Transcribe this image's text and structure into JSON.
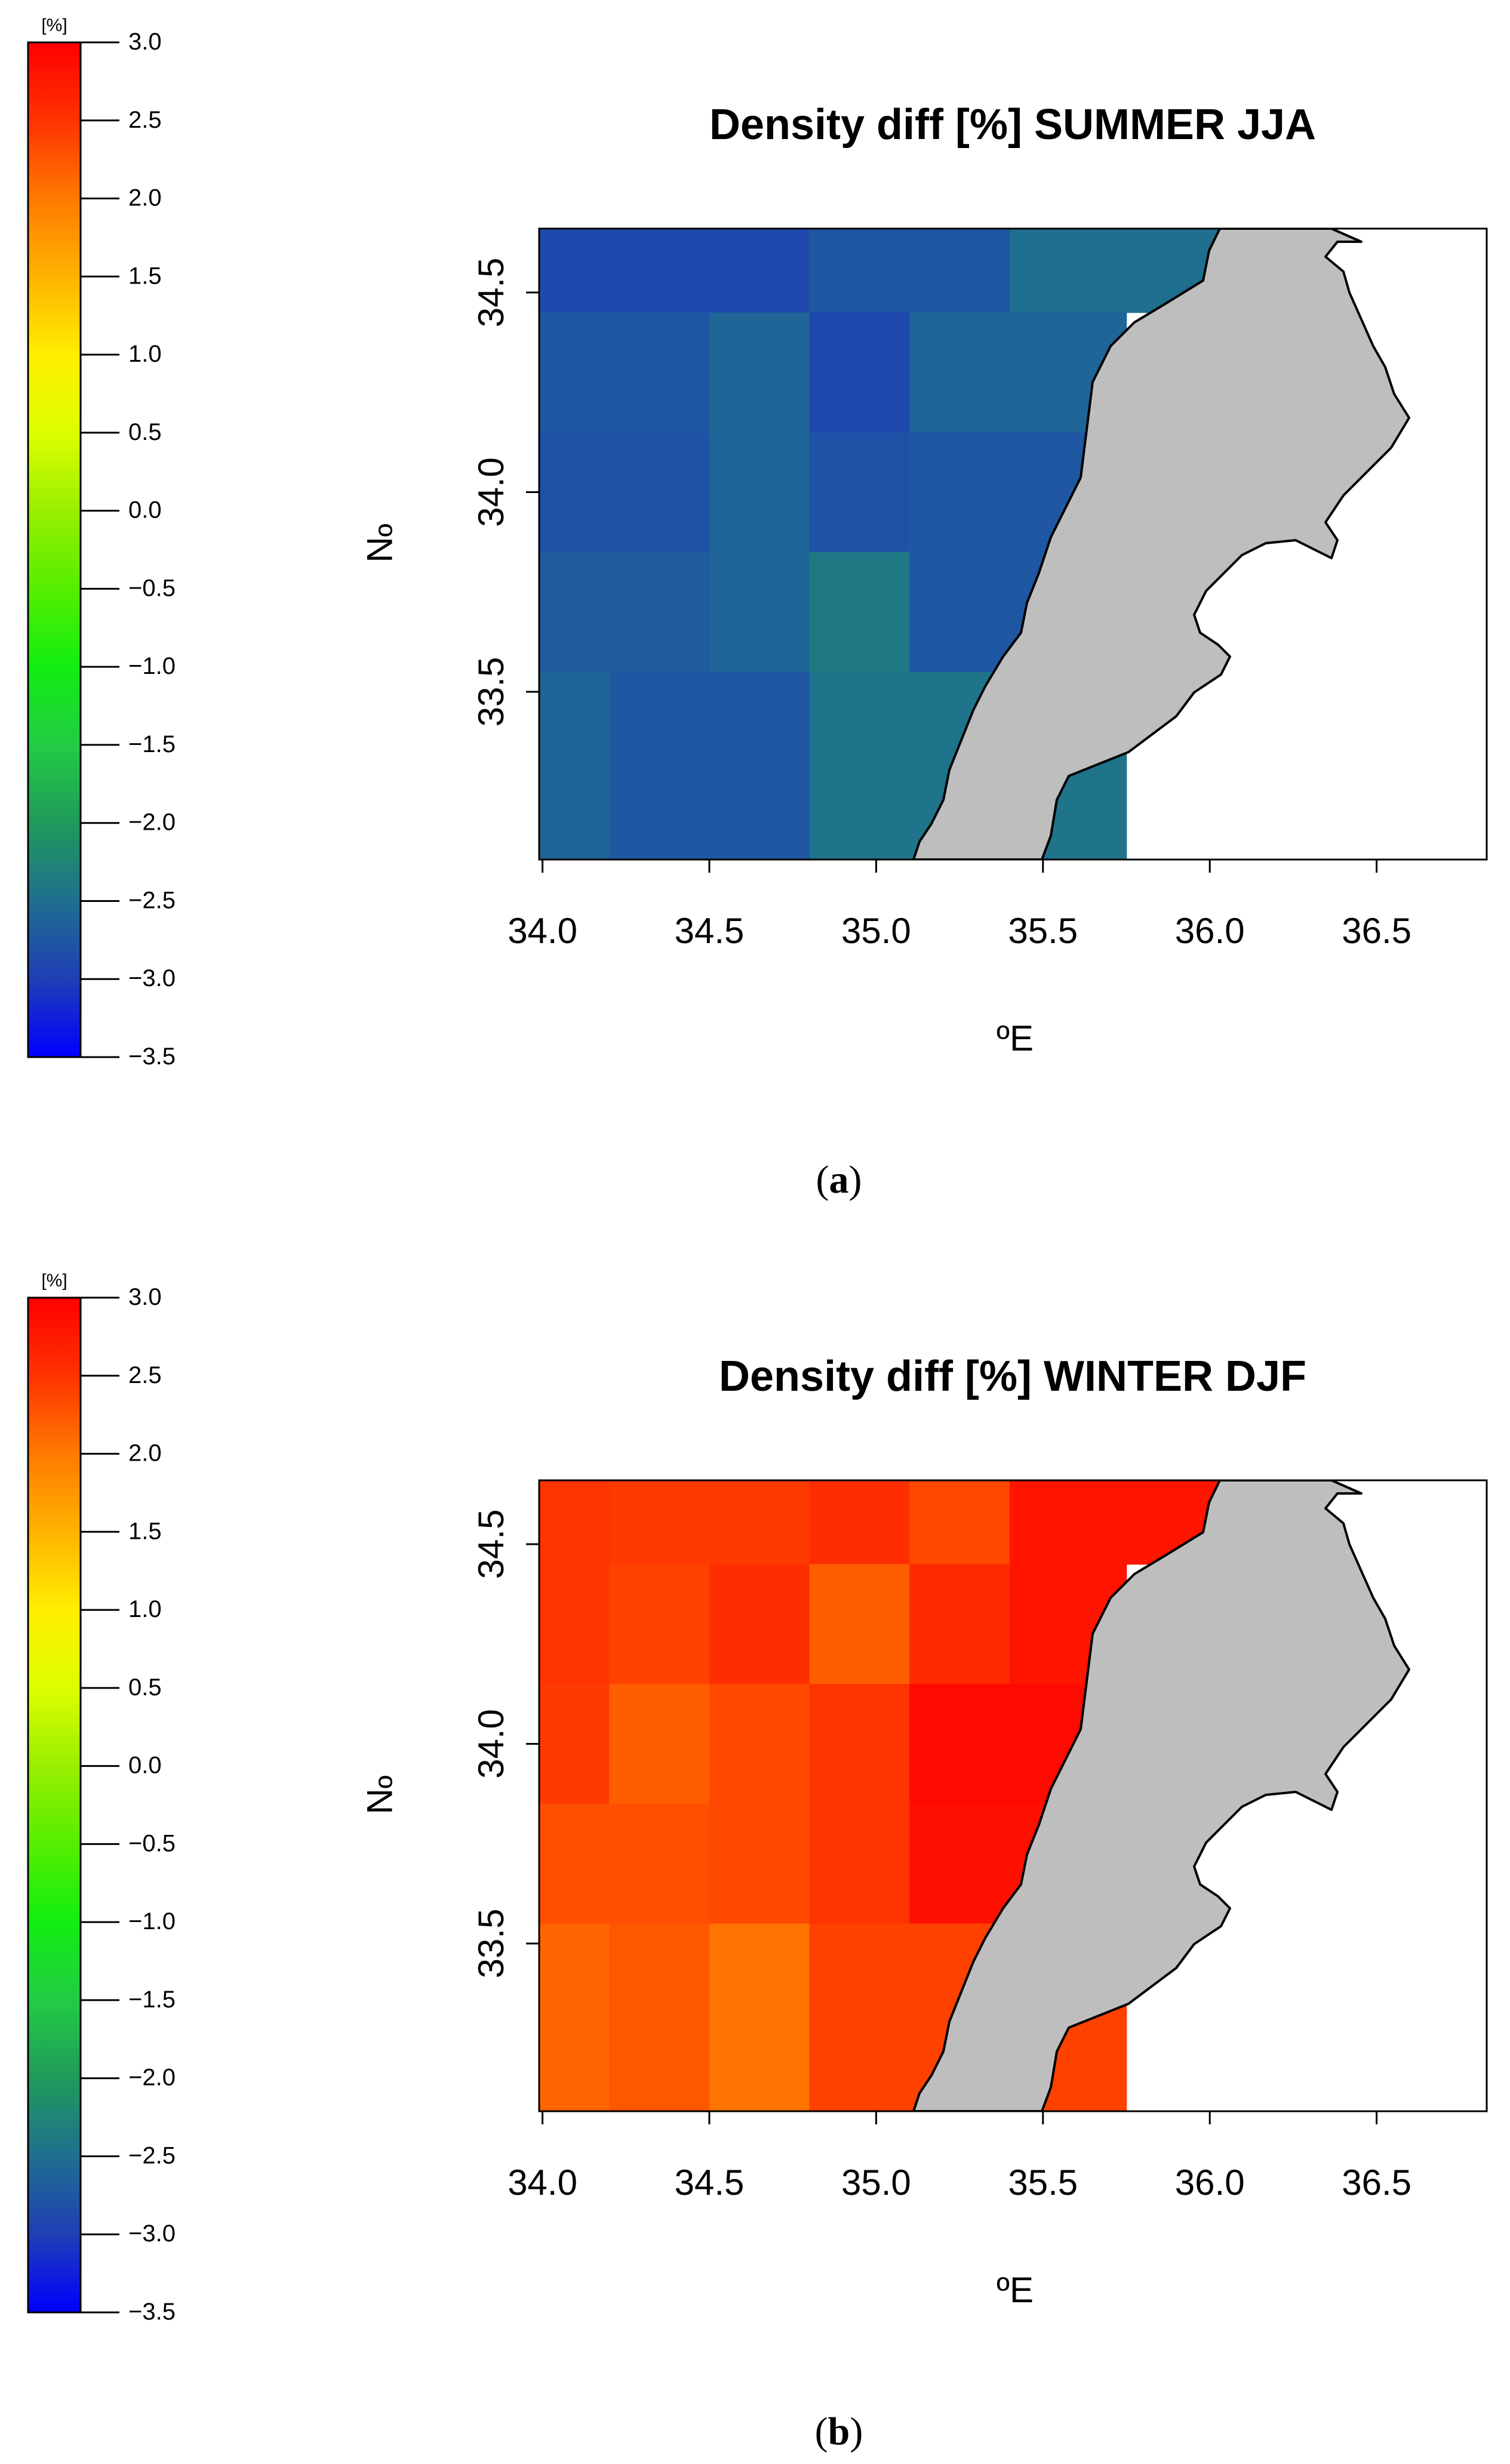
{
  "colorbar": {
    "unit": "[%]",
    "ticks": [
      "3.0",
      "2.5",
      "2.0",
      "1.5",
      "1.0",
      "0.5",
      "0.0",
      "−0.5",
      "−1.0",
      "−1.5",
      "−2.0",
      "−2.5",
      "−3.0",
      "−3.5"
    ],
    "range": [
      -3.5,
      3.0
    ],
    "colors": [
      {
        "value": 3.0,
        "color": "#ff0000"
      },
      {
        "value": 2.5,
        "color": "#ff3300"
      },
      {
        "value": 2.0,
        "color": "#ff7a00"
      },
      {
        "value": 1.5,
        "color": "#ffb300"
      },
      {
        "value": 1.0,
        "color": "#ffee00"
      },
      {
        "value": 0.5,
        "color": "#ddff00"
      },
      {
        "value": 0.0,
        "color": "#99ee00"
      },
      {
        "value": -0.5,
        "color": "#55ee00"
      },
      {
        "value": -1.0,
        "color": "#11ee11"
      },
      {
        "value": -1.5,
        "color": "#22cc44"
      },
      {
        "value": -2.0,
        "color": "#1f9a5a"
      },
      {
        "value": -2.5,
        "color": "#1f6f8f"
      },
      {
        "value": -3.0,
        "color": "#1f3fb5"
      },
      {
        "value": -3.5,
        "color": "#0000ff"
      }
    ]
  },
  "axes": {
    "xlabel": "ºE",
    "ylabel": "ºN",
    "x_ticks": [
      "34.0",
      "34.5",
      "35.0",
      "35.5",
      "36.0",
      "36.5"
    ],
    "y_ticks": [
      "34.5",
      "34.0",
      "33.5"
    ],
    "xlim": [
      33.99,
      36.83
    ],
    "ylim": [
      33.08,
      34.66
    ]
  },
  "land_color": "#bebebe",
  "panels": [
    {
      "title": "Density diff [%] SUMMER JJA",
      "caption_letter": "a",
      "cells": [
        {
          "lon": [
            33.98,
            34.2
          ],
          "lat": [
            34.45,
            34.66
          ],
          "value": -2.9
        },
        {
          "lon": [
            34.2,
            34.5
          ],
          "lat": [
            34.45,
            34.66
          ],
          "value": -2.9
        },
        {
          "lon": [
            34.5,
            34.8
          ],
          "lat": [
            34.45,
            34.66
          ],
          "value": -2.9
        },
        {
          "lon": [
            34.8,
            35.1
          ],
          "lat": [
            34.45,
            34.66
          ],
          "value": -2.75
        },
        {
          "lon": [
            35.1,
            35.4
          ],
          "lat": [
            34.45,
            34.66
          ],
          "value": -2.75
        },
        {
          "lon": [
            35.4,
            36.1
          ],
          "lat": [
            34.45,
            34.66
          ],
          "value": -2.5
        },
        {
          "lon": [
            33.98,
            34.2
          ],
          "lat": [
            34.15,
            34.45
          ],
          "value": -2.75
        },
        {
          "lon": [
            34.2,
            34.5
          ],
          "lat": [
            34.15,
            34.45
          ],
          "value": -2.75
        },
        {
          "lon": [
            34.5,
            34.8
          ],
          "lat": [
            34.15,
            34.45
          ],
          "value": -2.6
        },
        {
          "lon": [
            34.8,
            35.1
          ],
          "lat": [
            34.15,
            34.45
          ],
          "value": -2.9
        },
        {
          "lon": [
            35.1,
            35.4
          ],
          "lat": [
            34.15,
            34.45
          ],
          "value": -2.6
        },
        {
          "lon": [
            35.4,
            35.75
          ],
          "lat": [
            34.15,
            34.45
          ],
          "value": -2.6
        },
        {
          "lon": [
            33.98,
            34.2
          ],
          "lat": [
            33.85,
            34.15
          ],
          "value": -2.8
        },
        {
          "lon": [
            34.2,
            34.5
          ],
          "lat": [
            33.85,
            34.15
          ],
          "value": -2.8
        },
        {
          "lon": [
            34.5,
            34.8
          ],
          "lat": [
            33.85,
            34.15
          ],
          "value": -2.6
        },
        {
          "lon": [
            34.8,
            35.1
          ],
          "lat": [
            33.85,
            34.15
          ],
          "value": -2.8
        },
        {
          "lon": [
            35.1,
            35.4
          ],
          "lat": [
            33.85,
            34.15
          ],
          "value": -2.75
        },
        {
          "lon": [
            35.4,
            35.75
          ],
          "lat": [
            33.85,
            34.15
          ],
          "value": -2.75
        },
        {
          "lon": [
            33.98,
            34.2
          ],
          "lat": [
            33.55,
            33.85
          ],
          "value": -2.7
        },
        {
          "lon": [
            34.2,
            34.5
          ],
          "lat": [
            33.55,
            33.85
          ],
          "value": -2.7
        },
        {
          "lon": [
            34.5,
            34.8
          ],
          "lat": [
            33.55,
            33.85
          ],
          "value": -2.6
        },
        {
          "lon": [
            34.8,
            35.1
          ],
          "lat": [
            33.55,
            33.85
          ],
          "value": -2.4
        },
        {
          "lon": [
            35.1,
            35.4
          ],
          "lat": [
            33.55,
            33.85
          ],
          "value": -2.75
        },
        {
          "lon": [
            35.4,
            35.75
          ],
          "lat": [
            33.55,
            33.85
          ],
          "value": -2.75
        },
        {
          "lon": [
            33.98,
            34.2
          ],
          "lat": [
            33.08,
            33.55
          ],
          "value": -2.6
        },
        {
          "lon": [
            34.2,
            34.5
          ],
          "lat": [
            33.08,
            33.55
          ],
          "value": -2.75
        },
        {
          "lon": [
            34.5,
            34.8
          ],
          "lat": [
            33.08,
            33.55
          ],
          "value": -2.75
        },
        {
          "lon": [
            34.8,
            35.1
          ],
          "lat": [
            33.08,
            33.55
          ],
          "value": -2.45
        },
        {
          "lon": [
            35.1,
            35.4
          ],
          "lat": [
            33.08,
            33.55
          ],
          "value": -2.45
        },
        {
          "lon": [
            35.4,
            35.75
          ],
          "lat": [
            33.08,
            33.55
          ],
          "value": -2.45
        }
      ]
    },
    {
      "title": "Density diff [%] WINTER DJF",
      "caption_letter": "b",
      "cells": [
        {
          "lon": [
            33.98,
            34.2
          ],
          "lat": [
            34.45,
            34.66
          ],
          "value": 2.5
        },
        {
          "lon": [
            34.2,
            34.5
          ],
          "lat": [
            34.45,
            34.66
          ],
          "value": 2.45
        },
        {
          "lon": [
            34.5,
            34.8
          ],
          "lat": [
            34.45,
            34.66
          ],
          "value": 2.45
        },
        {
          "lon": [
            34.8,
            35.1
          ],
          "lat": [
            34.45,
            34.66
          ],
          "value": 2.55
        },
        {
          "lon": [
            35.1,
            35.4
          ],
          "lat": [
            34.45,
            34.66
          ],
          "value": 2.35
        },
        {
          "lon": [
            35.4,
            36.1
          ],
          "lat": [
            34.45,
            34.66
          ],
          "value": 2.8
        },
        {
          "lon": [
            33.98,
            34.2
          ],
          "lat": [
            34.15,
            34.45
          ],
          "value": 2.5
        },
        {
          "lon": [
            34.2,
            34.5
          ],
          "lat": [
            34.15,
            34.45
          ],
          "value": 2.4
        },
        {
          "lon": [
            34.5,
            34.8
          ],
          "lat": [
            34.15,
            34.45
          ],
          "value": 2.55
        },
        {
          "lon": [
            34.8,
            35.1
          ],
          "lat": [
            34.15,
            34.45
          ],
          "value": 2.2
        },
        {
          "lon": [
            35.1,
            35.4
          ],
          "lat": [
            34.15,
            34.45
          ],
          "value": 2.6
        },
        {
          "lon": [
            35.4,
            35.75
          ],
          "lat": [
            34.15,
            34.45
          ],
          "value": 2.8
        },
        {
          "lon": [
            33.98,
            34.2
          ],
          "lat": [
            33.85,
            34.15
          ],
          "value": 2.45
        },
        {
          "lon": [
            34.2,
            34.5
          ],
          "lat": [
            33.85,
            34.15
          ],
          "value": 2.2
        },
        {
          "lon": [
            34.5,
            34.8
          ],
          "lat": [
            33.85,
            34.15
          ],
          "value": 2.35
        },
        {
          "lon": [
            34.8,
            35.1
          ],
          "lat": [
            33.85,
            34.15
          ],
          "value": 2.5
        },
        {
          "lon": [
            35.1,
            35.4
          ],
          "lat": [
            33.85,
            34.15
          ],
          "value": 2.9
        },
        {
          "lon": [
            35.4,
            35.75
          ],
          "lat": [
            33.85,
            34.15
          ],
          "value": 2.9
        },
        {
          "lon": [
            33.98,
            34.2
          ],
          "lat": [
            33.55,
            33.85
          ],
          "value": 2.3
        },
        {
          "lon": [
            34.2,
            34.5
          ],
          "lat": [
            33.55,
            33.85
          ],
          "value": 2.3
        },
        {
          "lon": [
            34.5,
            34.8
          ],
          "lat": [
            33.55,
            33.85
          ],
          "value": 2.35
        },
        {
          "lon": [
            34.8,
            35.1
          ],
          "lat": [
            33.55,
            33.85
          ],
          "value": 2.5
        },
        {
          "lon": [
            35.1,
            35.4
          ],
          "lat": [
            33.55,
            33.85
          ],
          "value": 2.85
        },
        {
          "lon": [
            35.4,
            35.75
          ],
          "lat": [
            33.55,
            33.85
          ],
          "value": 2.85
        },
        {
          "lon": [
            33.98,
            34.2
          ],
          "lat": [
            33.08,
            33.55
          ],
          "value": 2.15
        },
        {
          "lon": [
            34.2,
            34.5
          ],
          "lat": [
            33.08,
            33.55
          ],
          "value": 2.25
        },
        {
          "lon": [
            34.5,
            34.8
          ],
          "lat": [
            33.08,
            33.55
          ],
          "value": 2.05
        },
        {
          "lon": [
            34.8,
            35.1
          ],
          "lat": [
            33.08,
            33.55
          ],
          "value": 2.4
        },
        {
          "lon": [
            35.1,
            35.4
          ],
          "lat": [
            33.08,
            33.55
          ],
          "value": 2.4
        },
        {
          "lon": [
            35.4,
            35.75
          ],
          "lat": [
            33.08,
            33.55
          ],
          "value": 2.4
        }
      ]
    }
  ]
}
